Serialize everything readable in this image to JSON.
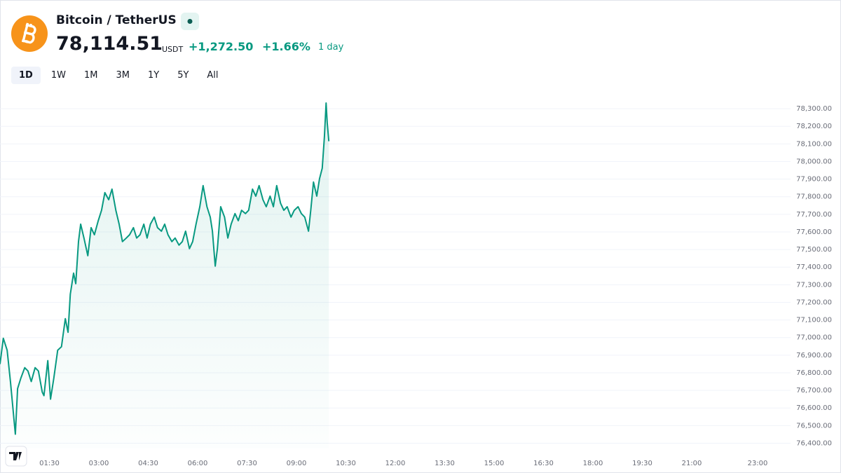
{
  "header": {
    "title": "Bitcoin / TetherUS",
    "price": "78,114.51",
    "currency": "USDT",
    "change": "+1,272.50",
    "change_percent": "+1.66%",
    "period": "1 day"
  },
  "ranges": [
    "1D",
    "1W",
    "1M",
    "3M",
    "1Y",
    "5Y",
    "All"
  ],
  "chart_data": {
    "type": "line",
    "color": "#089981",
    "grid": true,
    "xlim": [
      0,
      1440
    ],
    "ylim": [
      76370,
      78360
    ],
    "xticks": [
      {
        "value": 90,
        "label": "01:30"
      },
      {
        "value": 180,
        "label": "03:00"
      },
      {
        "value": 270,
        "label": "04:30"
      },
      {
        "value": 360,
        "label": "06:00"
      },
      {
        "value": 450,
        "label": "07:30"
      },
      {
        "value": 540,
        "label": "09:00"
      },
      {
        "value": 630,
        "label": "10:30"
      },
      {
        "value": 720,
        "label": "12:00"
      },
      {
        "value": 810,
        "label": "13:30"
      },
      {
        "value": 900,
        "label": "15:00"
      },
      {
        "value": 990,
        "label": "16:30"
      },
      {
        "value": 1080,
        "label": "18:00"
      },
      {
        "value": 1170,
        "label": "19:30"
      },
      {
        "value": 1260,
        "label": "21:00"
      },
      {
        "value": 1380,
        "label": "23:00"
      }
    ],
    "yticks": [
      {
        "value": 76400,
        "label": "76,400.00"
      },
      {
        "value": 76500,
        "label": "76,500.00"
      },
      {
        "value": 76600,
        "label": "76,600.00"
      },
      {
        "value": 76700,
        "label": "76,700.00"
      },
      {
        "value": 76800,
        "label": "76,800.00"
      },
      {
        "value": 76900,
        "label": "76,900.00"
      },
      {
        "value": 77000,
        "label": "77,000.00"
      },
      {
        "value": 77100,
        "label": "77,100.00"
      },
      {
        "value": 77200,
        "label": "77,200.00"
      },
      {
        "value": 77300,
        "label": "77,300.00"
      },
      {
        "value": 77400,
        "label": "77,400.00"
      },
      {
        "value": 77500,
        "label": "77,500.00"
      },
      {
        "value": 77600,
        "label": "77,600.00"
      },
      {
        "value": 77700,
        "label": "77,700.00"
      },
      {
        "value": 77800,
        "label": "77,800.00"
      },
      {
        "value": 77900,
        "label": "77,900.00"
      },
      {
        "value": 78000,
        "label": "78,000.00"
      },
      {
        "value": 78100,
        "label": "78,100.00"
      },
      {
        "value": 78200,
        "label": "78,200.00"
      },
      {
        "value": 78300,
        "label": "78,300.00"
      }
    ],
    "x": [
      0,
      6,
      13,
      19,
      28,
      32,
      38,
      45,
      51,
      57,
      64,
      70,
      77,
      80,
      87,
      92,
      98,
      105,
      112,
      119,
      124,
      128,
      134,
      138,
      143,
      147,
      153,
      160,
      166,
      172,
      179,
      185,
      191,
      198,
      204,
      211,
      217,
      223,
      230,
      236,
      243,
      249,
      255,
      262,
      268,
      274,
      281,
      287,
      294,
      300,
      306,
      313,
      319,
      326,
      332,
      338,
      345,
      351,
      357,
      364,
      370,
      377,
      383,
      387,
      392,
      396,
      402,
      409,
      415,
      421,
      428,
      434,
      440,
      447,
      453,
      460,
      466,
      472,
      479,
      485,
      492,
      498,
      504,
      511,
      517,
      523,
      530,
      536,
      543,
      549,
      555,
      562,
      566,
      571,
      577,
      582,
      587,
      591,
      594,
      596,
      599
    ],
    "values": [
      76849,
      76996,
      76928,
      76750,
      76451,
      76710,
      76770,
      76829,
      76810,
      76750,
      76829,
      76810,
      76690,
      76670,
      76869,
      76650,
      76770,
      76928,
      76948,
      77107,
      77030,
      77246,
      77366,
      77306,
      77545,
      77644,
      77565,
      77465,
      77624,
      77584,
      77664,
      77723,
      77823,
      77783,
      77843,
      77723,
      77644,
      77545,
      77565,
      77584,
      77624,
      77565,
      77584,
      77644,
      77565,
      77644,
      77684,
      77624,
      77604,
      77644,
      77584,
      77545,
      77565,
      77525,
      77545,
      77604,
      77505,
      77545,
      77644,
      77743,
      77863,
      77743,
      77684,
      77604,
      77406,
      77505,
      77743,
      77684,
      77565,
      77644,
      77704,
      77664,
      77723,
      77704,
      77723,
      77843,
      77803,
      77863,
      77783,
      77743,
      77803,
      77743,
      77863,
      77763,
      77723,
      77743,
      77684,
      77723,
      77743,
      77704,
      77684,
      77604,
      77723,
      77883,
      77803,
      77902,
      77962,
      78141,
      78332,
      78220,
      78115
    ]
  }
}
